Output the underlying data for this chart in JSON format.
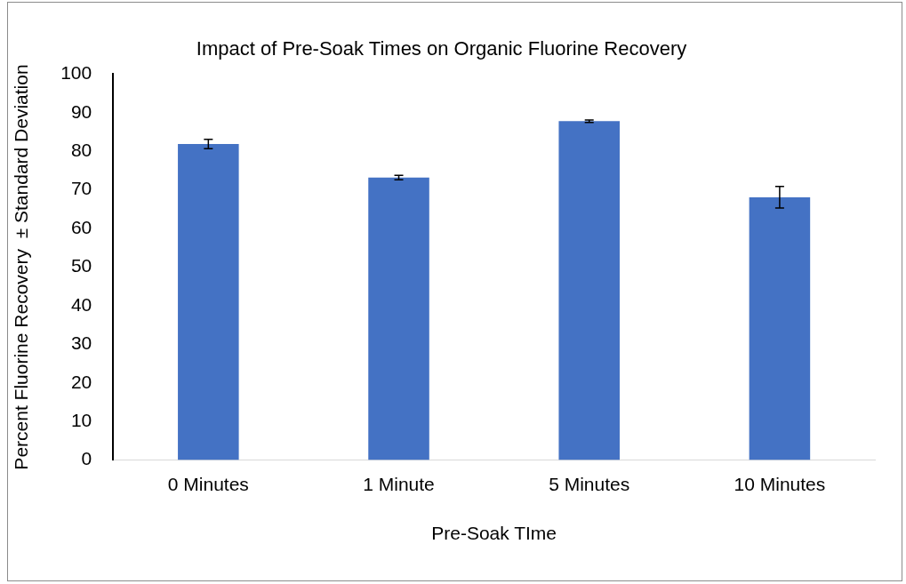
{
  "chart_data": {
    "type": "bar",
    "title": "Impact of Pre-Soak Times on Organic Fluorine Recovery",
    "xlabel": "Pre-Soak TIme",
    "ylabel": "Percent Fluorine Recovery  ± Standard Deviation",
    "categories": [
      "0 Minutes",
      "1 Minute",
      "5 Minutes",
      "10 Minutes"
    ],
    "values": [
      81.9,
      73.2,
      87.8,
      68.1
    ],
    "errors": [
      1.2,
      0.6,
      0.3,
      2.8
    ],
    "color": "#4472c4",
    "ylim": [
      0,
      100
    ],
    "yticks": [
      0,
      10,
      20,
      30,
      40,
      50,
      60,
      70,
      80,
      90,
      100
    ],
    "grid": false,
    "legend": false
  }
}
